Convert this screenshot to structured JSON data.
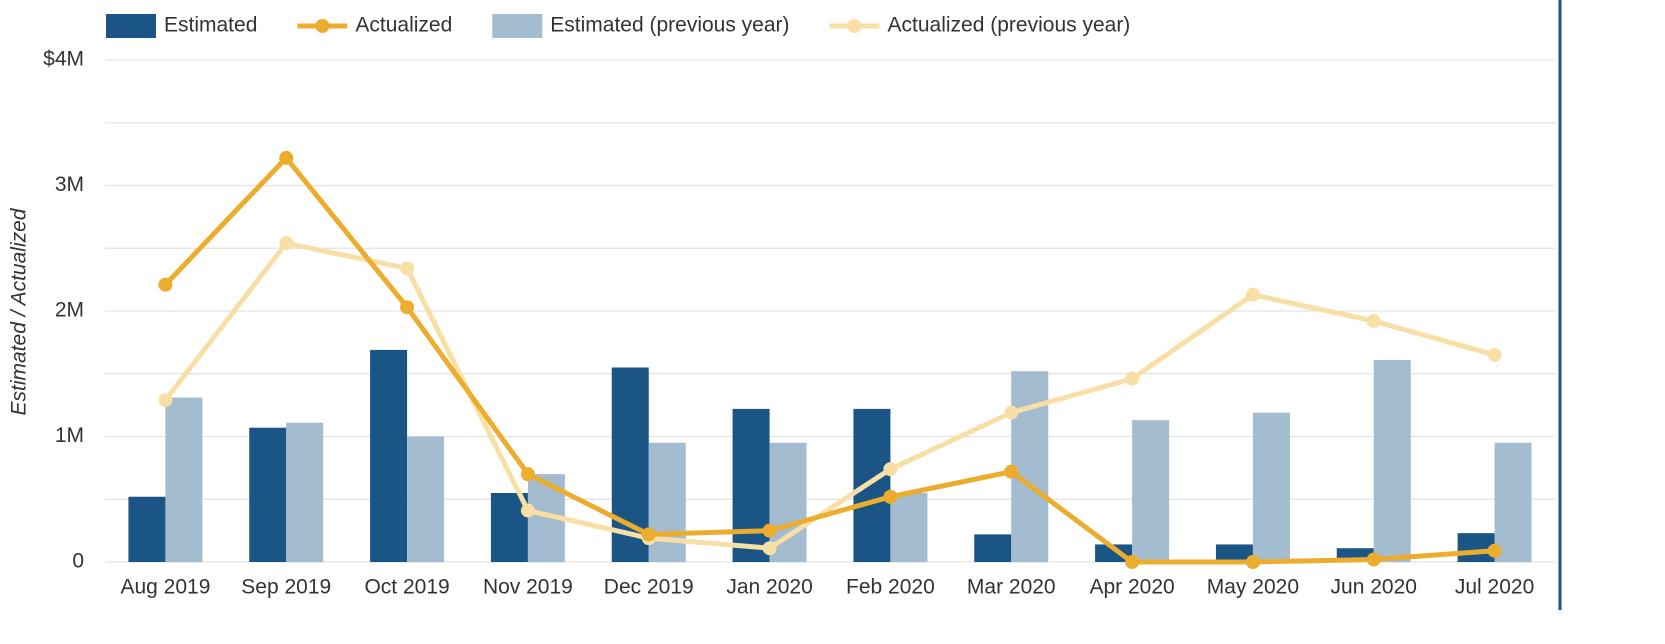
{
  "chart_data": {
    "type": "bar",
    "y_label": "Estimated / Actualized",
    "categories": [
      "Aug 2019",
      "Sep 2019",
      "Oct 2019",
      "Nov 2019",
      "Dec 2019",
      "Jan 2020",
      "Feb 2020",
      "Mar 2020",
      "Apr 2020",
      "May 2020",
      "Jun 2020",
      "Jul 2020"
    ],
    "series": [
      {
        "name": "Estimated",
        "type": "bar",
        "color": "#1a5586",
        "values": [
          520000,
          1070000,
          1690000,
          550000,
          1550000,
          1220000,
          1220000,
          220000,
          140000,
          140000,
          110000,
          230000
        ]
      },
      {
        "name": "Actualized",
        "type": "line",
        "color": "#ecad2e",
        "values": [
          2210000,
          3220000,
          2030000,
          700000,
          220000,
          250000,
          520000,
          720000,
          0,
          0,
          20000,
          90000
        ]
      },
      {
        "name": "Estimated (previous year)",
        "type": "bar",
        "color": "#a3bcd0",
        "values": [
          1310000,
          1110000,
          1000000,
          700000,
          950000,
          950000,
          550000,
          1520000,
          1130000,
          1190000,
          1610000,
          950000
        ]
      },
      {
        "name": "Actualized (previous year)",
        "type": "line",
        "color": "#f8dfa6",
        "values": [
          1290000,
          2540000,
          2340000,
          410000,
          190000,
          110000,
          740000,
          1190000,
          1460000,
          2130000,
          1920000,
          1650000
        ]
      }
    ],
    "ylim": [
      0,
      4000000
    ],
    "yticks": [
      0,
      {
        "value": 1000000,
        "label": "1M"
      },
      {
        "value": 2000000,
        "label": "2M"
      },
      {
        "value": 3000000,
        "label": "3M"
      },
      {
        "value": 4000000,
        "label": "$4M"
      }
    ],
    "minor_yticks": [
      500000,
      1500000,
      2500000,
      3500000
    ],
    "grid": true
  }
}
